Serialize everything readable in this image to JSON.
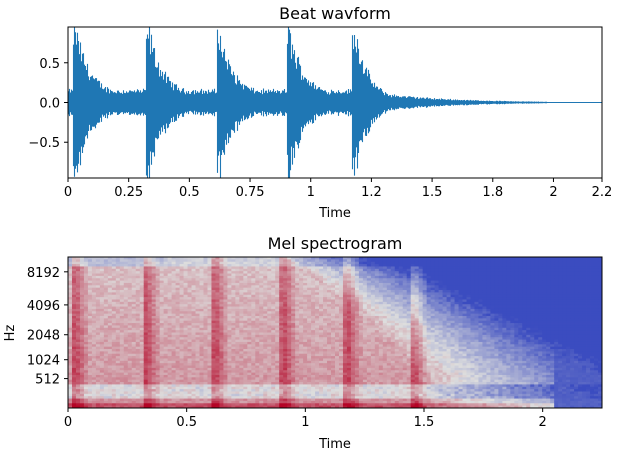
{
  "chart_data": [
    {
      "type": "line",
      "title": "Beat wavform",
      "xlabel": "Time",
      "ylabel": "",
      "xlim": [
        0,
        2.2
      ],
      "ylim": [
        -0.95,
        0.95
      ],
      "x_ticks": [
        0,
        0.25,
        0.5,
        0.75,
        1,
        1.25,
        1.5,
        1.75,
        2,
        2.2
      ],
      "x_tick_labels": [
        "0",
        "0.25",
        "0.5",
        "0.75",
        "1",
        "1.2",
        "1.5",
        "1.8",
        "2",
        "2.2"
      ],
      "y_ticks": [
        0.5,
        0.0,
        -0.5
      ],
      "y_tick_labels": [
        "0.5",
        "0.0",
        "−0.5"
      ],
      "line_color": "#1f77b4",
      "beat_onsets": [
        0.03,
        0.33,
        0.62,
        0.91,
        1.18
      ],
      "beat_peak_amplitudes": [
        0.88,
        0.85,
        0.84,
        0.83,
        0.84
      ],
      "signal_end": 1.85
    },
    {
      "type": "heatmap",
      "title": "Mel spectrogram",
      "xlabel": "Time",
      "ylabel": "Hz",
      "xlim": [
        0,
        2.25
      ],
      "x_ticks": [
        0,
        0.5,
        1,
        1.5,
        2
      ],
      "x_tick_labels": [
        "0",
        "0.5",
        "1",
        "1.5",
        "2"
      ],
      "y_tick_labels": [
        "512",
        "1024",
        "2048",
        "4096",
        "8192"
      ],
      "y_tick_hz": [
        512,
        1024,
        2048,
        4096,
        8192
      ],
      "colormap": "coolwarm",
      "colormap_colors": [
        "#3b4cc0",
        "#dddddd",
        "#b40426"
      ],
      "beat_onsets": [
        0.03,
        0.33,
        0.62,
        0.91,
        1.18,
        1.46
      ]
    }
  ]
}
